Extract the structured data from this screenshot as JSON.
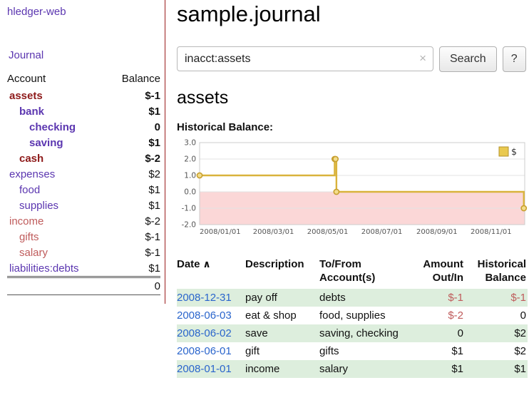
{
  "colors": {
    "link_purple": "#5b36b0",
    "negative_dark": "#8e1a1a",
    "negative_soft": "#bf5b5b",
    "date_link_blue": "#2a65cc",
    "row_highlight_green": "#ddeedd",
    "sidebar_divider_red": "#9b1c1c",
    "chart_line_gold": "#d9b33c",
    "chart_marker_fill": "#f3dd8c",
    "chart_negative_pink": "#fbd7d7"
  },
  "sidebar": {
    "app_title": "hledger-web",
    "journal_link": "Journal",
    "accounts_table": {
      "headers": [
        "Account",
        "Balance"
      ],
      "rows": [
        {
          "account": "assets",
          "balance": "$-1",
          "indent": 1,
          "bold": true
        },
        {
          "account": "bank",
          "balance": "$1",
          "indent": 2,
          "bold": true
        },
        {
          "account": "checking",
          "balance": "0",
          "indent": 3,
          "bold": true
        },
        {
          "account": "saving",
          "balance": "$1",
          "indent": 3,
          "bold": true
        },
        {
          "account": "cash",
          "balance": "$-2",
          "indent": 2,
          "bold": true
        },
        {
          "account": "expenses",
          "balance": "$2",
          "indent": 1,
          "bold": false
        },
        {
          "account": "food",
          "balance": "$1",
          "indent": 2,
          "bold": false
        },
        {
          "account": "supplies",
          "balance": "$1",
          "indent": 2,
          "bold": false
        },
        {
          "account": "income",
          "balance": "$-2",
          "indent": 1,
          "bold": false
        },
        {
          "account": "gifts",
          "balance": "$-1",
          "indent": 2,
          "bold": false
        },
        {
          "account": "salary",
          "balance": "$-1",
          "indent": 2,
          "bold": false
        },
        {
          "account": "liabilities:debts",
          "balance": "$1",
          "indent": 1,
          "bold": false
        }
      ],
      "total": "0"
    }
  },
  "main": {
    "title": "sample.journal",
    "search": {
      "value": "inacct:assets",
      "clear_icon": "×",
      "button_label": "Search",
      "help_label": "?"
    },
    "account_heading": "assets",
    "chart_title": "Historical Balance:"
  },
  "chart_data": {
    "type": "line",
    "style": "step",
    "title": "Historical Balance:",
    "legend_position": "top-right",
    "grid": true,
    "negative_region_shaded": true,
    "xlim": [
      "2008-01-01",
      "2009-01-01"
    ],
    "ylim": [
      -2,
      3
    ],
    "y_ticks": [
      "3.0",
      "2.0",
      "1.0",
      "0.0",
      "-1.0",
      "-2.0"
    ],
    "x_ticks": [
      "2008/01/01",
      "2008/03/01",
      "2008/05/01",
      "2008/07/01",
      "2008/09/01",
      "2008/11/01"
    ],
    "series": [
      {
        "name": "$",
        "points": [
          [
            "2008-01-01",
            1
          ],
          [
            "2008-06-01",
            2
          ],
          [
            "2008-06-02",
            2
          ],
          [
            "2008-06-03",
            0
          ],
          [
            "2008-12-31",
            -1
          ]
        ]
      }
    ]
  },
  "register": {
    "sort_ascending_icon": "∧",
    "headers": [
      {
        "key": "date",
        "lines": [
          "Date"
        ],
        "sorted": true
      },
      {
        "key": "description",
        "lines": [
          "Description"
        ]
      },
      {
        "key": "tofrom",
        "lines": [
          "To/From",
          "Account(s)"
        ]
      },
      {
        "key": "amount",
        "lines": [
          "Amount",
          "Out/In"
        ]
      },
      {
        "key": "balance",
        "lines": [
          "Historical",
          "Balance"
        ]
      }
    ],
    "rows": [
      {
        "date": "2008-12-31",
        "description": "pay off",
        "accounts": "debts",
        "amount": "$-1",
        "balance": "$-1"
      },
      {
        "date": "2008-06-03",
        "description": "eat & shop",
        "accounts": "food, supplies",
        "amount": "$-2",
        "balance": "0"
      },
      {
        "date": "2008-06-02",
        "description": "save",
        "accounts": "saving, checking",
        "amount": "0",
        "balance": "$2"
      },
      {
        "date": "2008-06-01",
        "description": "gift",
        "accounts": "gifts",
        "amount": "$1",
        "balance": "$2"
      },
      {
        "date": "2008-01-01",
        "description": "income",
        "accounts": "salary",
        "amount": "$1",
        "balance": "$1"
      }
    ]
  }
}
